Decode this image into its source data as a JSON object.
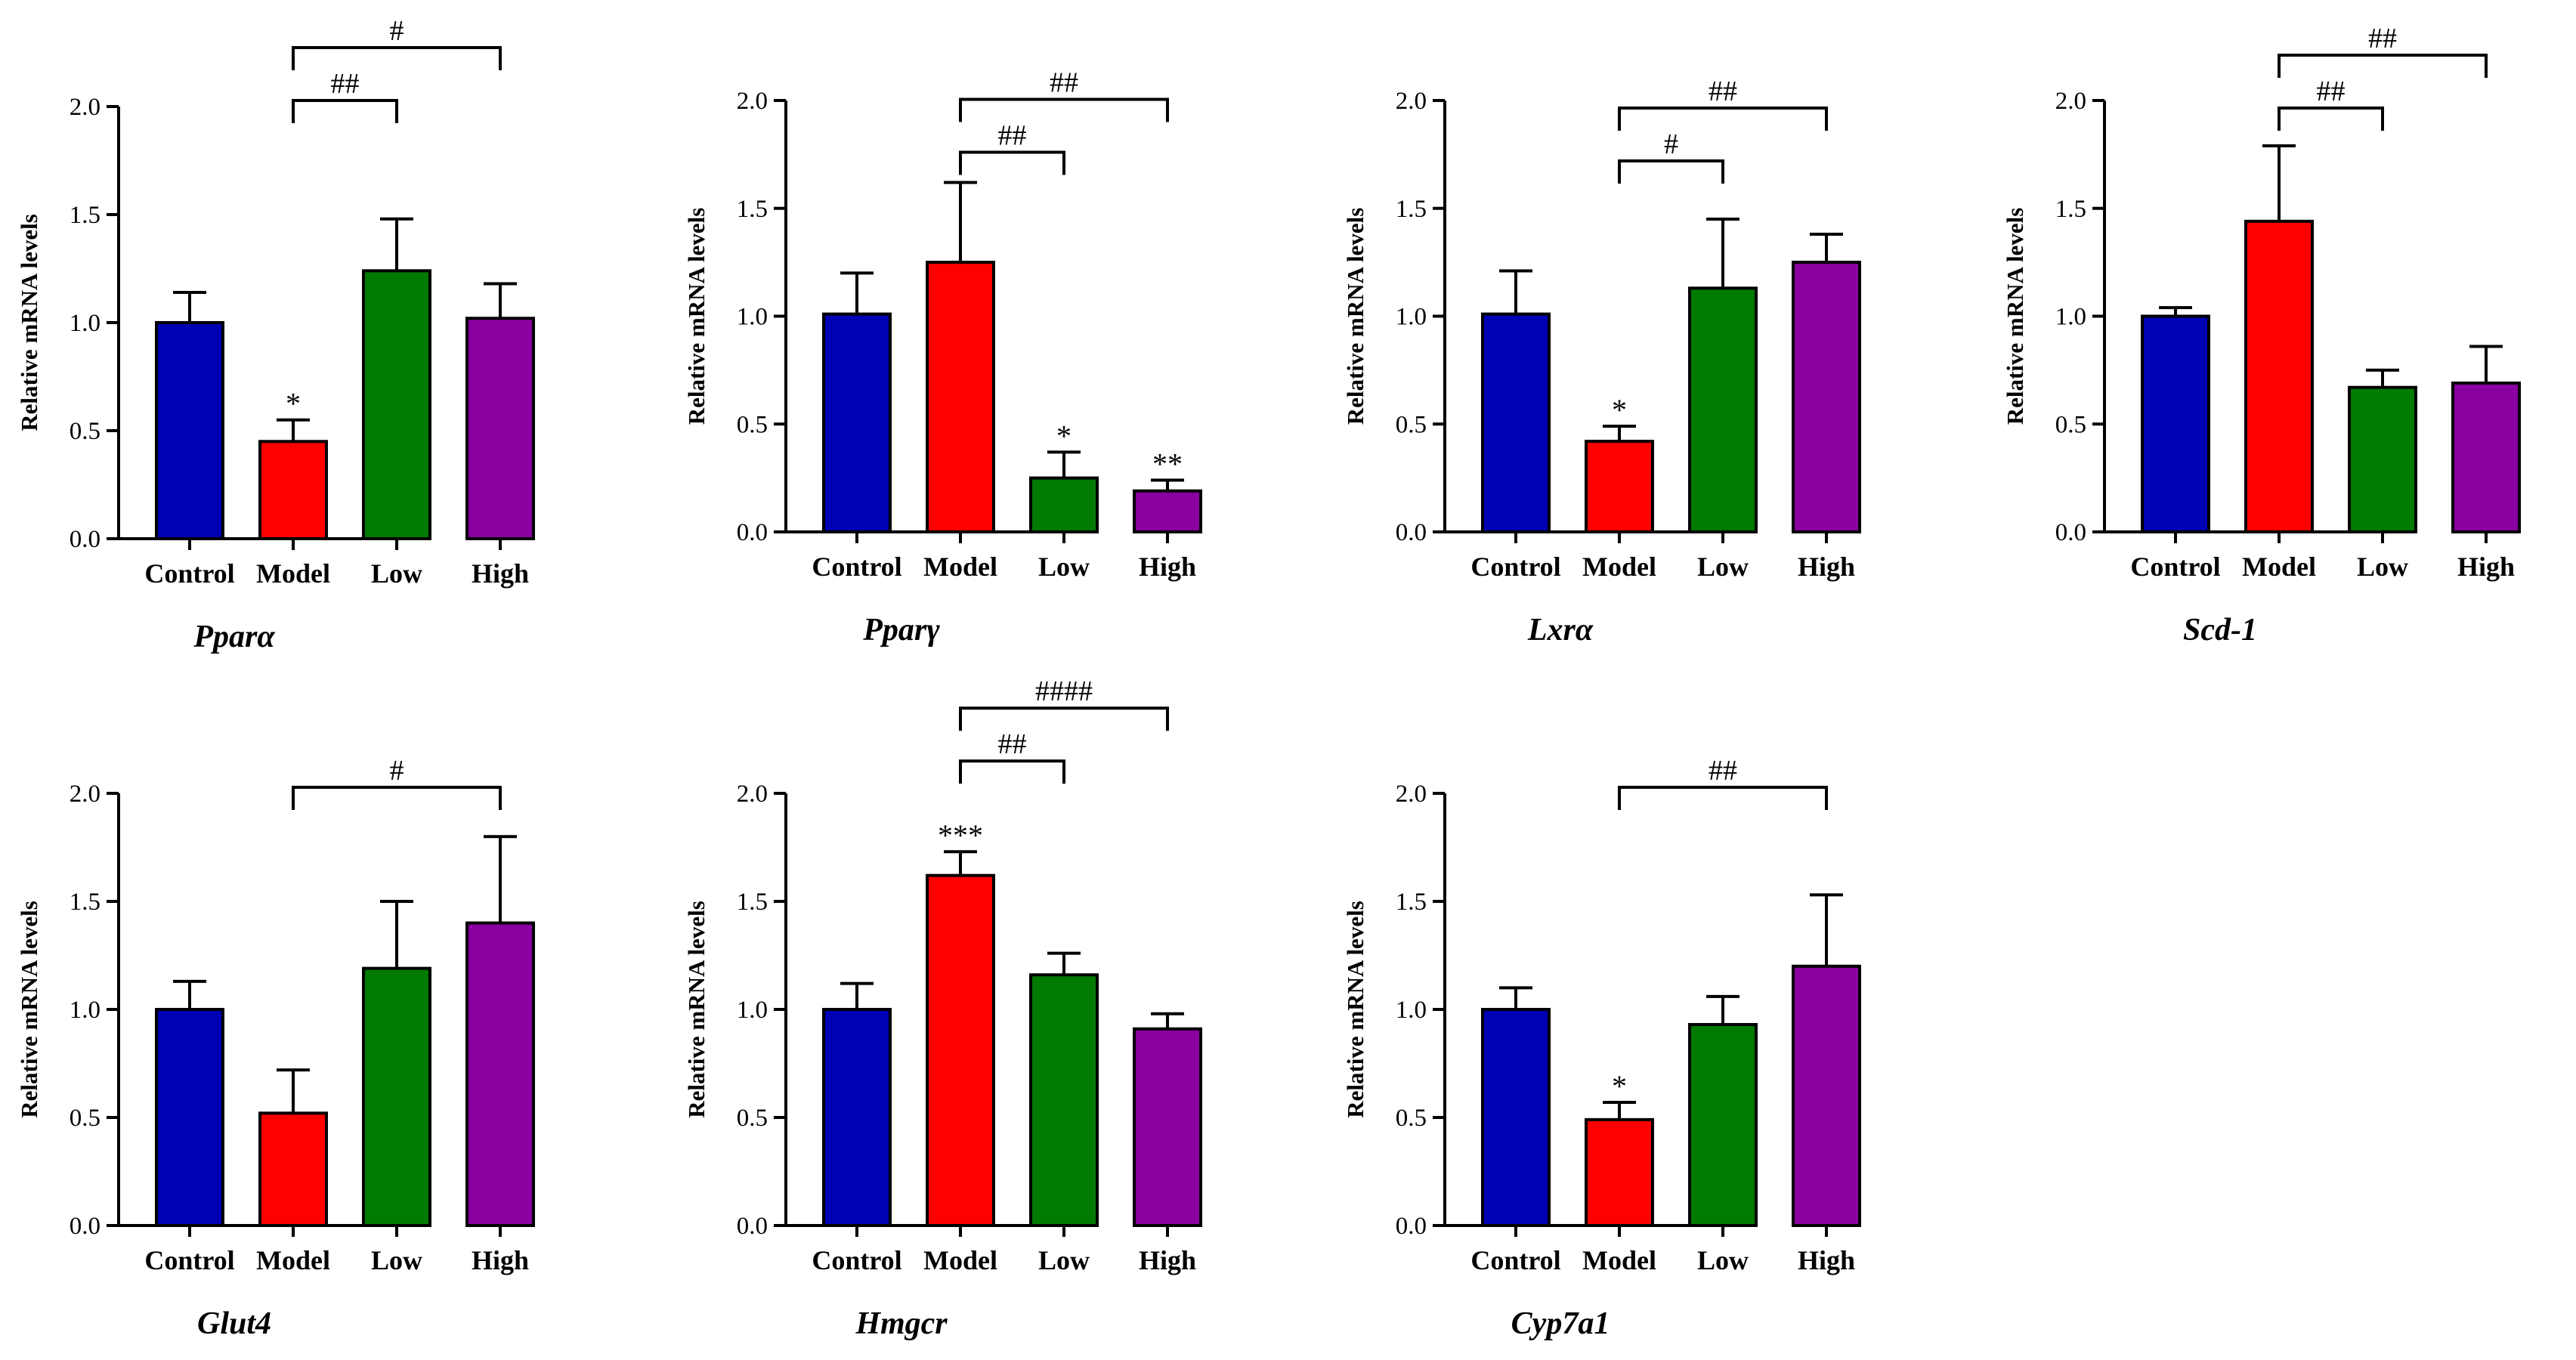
{
  "group_colors": {
    "Control": "#0000b4",
    "Model": "#ff0000",
    "Low": "#007a00",
    "High": "#8b00a0"
  },
  "chart_data": [
    {
      "type": "bar",
      "title": "Pparα",
      "ylabel": "Relative mRNA levels",
      "categories": [
        "Control",
        "Model",
        "Low",
        "High"
      ],
      "values": [
        1.0,
        0.45,
        1.24,
        1.02
      ],
      "errors": [
        0.14,
        0.1,
        0.24,
        0.16
      ],
      "ylim": [
        0,
        2.0
      ],
      "yticks": [
        "0.0",
        "0.5",
        "1.0",
        "1.5",
        "2.0"
      ],
      "star_labels": [
        "",
        "*",
        "",
        ""
      ],
      "brackets": [
        {
          "from": "Model",
          "to": "Low",
          "label": "##",
          "level": 0
        },
        {
          "from": "Model",
          "to": "High",
          "label": "#",
          "level": 1
        }
      ]
    },
    {
      "type": "bar",
      "title": "Pparγ",
      "ylabel": "Relative mRNA levels",
      "categories": [
        "Control",
        "Model",
        "Low",
        "High"
      ],
      "values": [
        1.01,
        1.25,
        0.25,
        0.19
      ],
      "errors": [
        0.19,
        0.37,
        0.12,
        0.05
      ],
      "ylim": [
        0,
        2.0
      ],
      "yticks": [
        "0.0",
        "0.5",
        "1.0",
        "1.5",
        "2.0"
      ],
      "star_labels": [
        "",
        "",
        "*",
        "**"
      ],
      "brackets": [
        {
          "from": "Model",
          "to": "Low",
          "label": "##",
          "level": 0
        },
        {
          "from": "Model",
          "to": "High",
          "label": "##",
          "level": 1
        }
      ]
    },
    {
      "type": "bar",
      "title": "Lxrα",
      "ylabel": "Relative mRNA levels",
      "categories": [
        "Control",
        "Model",
        "Low",
        "High"
      ],
      "values": [
        1.01,
        0.42,
        1.13,
        1.25
      ],
      "errors": [
        0.2,
        0.07,
        0.32,
        0.13
      ],
      "ylim": [
        0,
        2.0
      ],
      "yticks": [
        "0.0",
        "0.5",
        "1.0",
        "1.5",
        "2.0"
      ],
      "star_labels": [
        "",
        "*",
        "",
        ""
      ],
      "brackets": [
        {
          "from": "Model",
          "to": "Low",
          "label": "#",
          "level": 0
        },
        {
          "from": "Model",
          "to": "High",
          "label": "##",
          "level": 1
        }
      ]
    },
    {
      "type": "bar",
      "title": "Scd-1",
      "ylabel": "Relative mRNA levels",
      "categories": [
        "Control",
        "Model",
        "Low",
        "High"
      ],
      "values": [
        1.0,
        1.44,
        0.67,
        0.69
      ],
      "errors": [
        0.04,
        0.35,
        0.08,
        0.17
      ],
      "ylim": [
        0,
        2.0
      ],
      "yticks": [
        "0.0",
        "0.5",
        "1.0",
        "1.5",
        "2.0"
      ],
      "star_labels": [
        "",
        "",
        "",
        ""
      ],
      "brackets": [
        {
          "from": "Model",
          "to": "Low",
          "label": "##",
          "level": 0
        },
        {
          "from": "Model",
          "to": "High",
          "label": "##",
          "level": 1
        }
      ]
    },
    {
      "type": "bar",
      "title": "Glut4",
      "ylabel": "Relative mRNA levels",
      "categories": [
        "Control",
        "Model",
        "Low",
        "High"
      ],
      "values": [
        1.0,
        0.52,
        1.19,
        1.4
      ],
      "errors": [
        0.13,
        0.2,
        0.31,
        0.4
      ],
      "ylim": [
        0,
        2.0
      ],
      "yticks": [
        "0.0",
        "0.5",
        "1.0",
        "1.5",
        "2.0"
      ],
      "star_labels": [
        "",
        "",
        "",
        ""
      ],
      "brackets": [
        {
          "from": "Model",
          "to": "High",
          "label": "#",
          "level": 0
        }
      ]
    },
    {
      "type": "bar",
      "title": "Hmgcr",
      "ylabel": "Relative mRNA levels",
      "categories": [
        "Control",
        "Model",
        "Low",
        "High"
      ],
      "values": [
        1.0,
        1.62,
        1.16,
        0.91
      ],
      "errors": [
        0.12,
        0.11,
        0.1,
        0.07
      ],
      "ylim": [
        0,
        2.0
      ],
      "yticks": [
        "0.0",
        "0.5",
        "1.0",
        "1.5",
        "2.0"
      ],
      "star_labels": [
        "",
        "***",
        "",
        ""
      ],
      "brackets": [
        {
          "from": "Model",
          "to": "Low",
          "label": "##",
          "level": 0
        },
        {
          "from": "Model",
          "to": "High",
          "label": "####",
          "level": 1
        }
      ]
    },
    {
      "type": "bar",
      "title": "Cyp7a1",
      "ylabel": "Relative mRNA levels",
      "categories": [
        "Control",
        "Model",
        "Low",
        "High"
      ],
      "values": [
        1.0,
        0.49,
        0.93,
        1.2
      ],
      "errors": [
        0.1,
        0.08,
        0.13,
        0.33
      ],
      "ylim": [
        0,
        2.0
      ],
      "yticks": [
        "0.0",
        "0.5",
        "1.0",
        "1.5",
        "2.0"
      ],
      "star_labels": [
        "",
        "*",
        "",
        ""
      ],
      "brackets": [
        {
          "from": "Model",
          "to": "High",
          "label": "##",
          "level": 0
        }
      ]
    }
  ]
}
